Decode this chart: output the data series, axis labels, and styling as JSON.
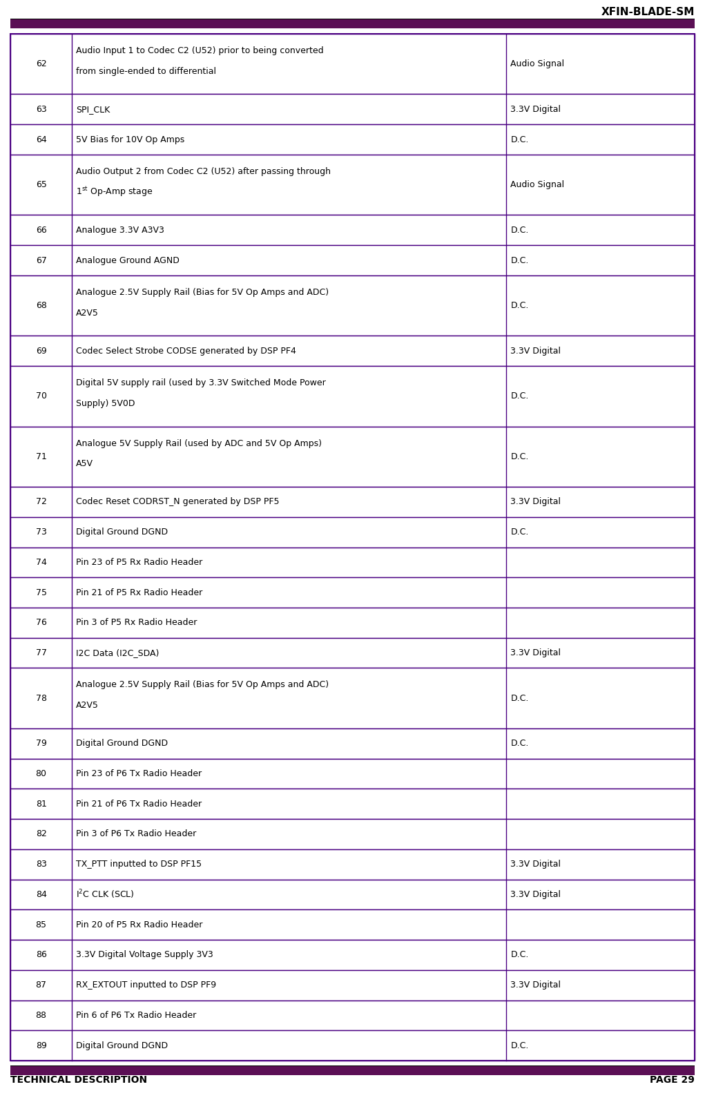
{
  "title": "XFIN-BLADE-SM",
  "footer_left": "TECHNICAL DESCRIPTION",
  "footer_right": "PAGE 29",
  "header_bar_color": "#5B0F55",
  "footer_bar_color": "#5B0F55",
  "table_border_color": "#4B0082",
  "rows": [
    {
      "pin": "62",
      "description": "Audio Input 1 to Codec C2 (U52) prior to being converted\nfrom single-ended to differential",
      "signal": "Audio Signal",
      "tall": true
    },
    {
      "pin": "63",
      "description": "SPI_CLK",
      "signal": "3.3V Digital",
      "tall": false
    },
    {
      "pin": "64",
      "description": "5V Bias for 10V Op Amps",
      "signal": "D.C.",
      "tall": false
    },
    {
      "pin": "65",
      "description": "Audio Output 2 from Codec C2 (U52) after passing through\n1st Op-Amp stage",
      "signal": "Audio Signal",
      "tall": true,
      "superscript": "st",
      "super_after": "1",
      "super_line": 1
    },
    {
      "pin": "66",
      "description": "Analogue 3.3V A3V3",
      "signal": "D.C.",
      "tall": false
    },
    {
      "pin": "67",
      "description": "Analogue Ground AGND",
      "signal": "D.C.",
      "tall": false
    },
    {
      "pin": "68",
      "description": "Analogue 2.5V Supply Rail (Bias for 5V Op Amps and ADC)\nA2V5",
      "signal": "D.C.",
      "tall": true
    },
    {
      "pin": "69",
      "description": "Codec Select Strobe CODSE generated by DSP PF4",
      "signal": "3.3V Digital",
      "tall": false
    },
    {
      "pin": "70",
      "description": "Digital 5V supply rail (used by 3.3V Switched Mode Power\nSupply) 5V0D",
      "signal": "D.C.",
      "tall": true
    },
    {
      "pin": "71",
      "description": "Analogue 5V Supply Rail (used by ADC and 5V Op Amps)\nA5V",
      "signal": "D.C.",
      "tall": true
    },
    {
      "pin": "72",
      "description": "Codec Reset CODRST_N generated by DSP PF5",
      "signal": "3.3V Digital",
      "tall": false
    },
    {
      "pin": "73",
      "description": "Digital Ground DGND",
      "signal": "D.C.",
      "tall": false
    },
    {
      "pin": "74",
      "description": "Pin 23 of P5 Rx Radio Header",
      "signal": "",
      "tall": false
    },
    {
      "pin": "75",
      "description": "Pin 21 of P5 Rx Radio Header",
      "signal": "",
      "tall": false
    },
    {
      "pin": "76",
      "description": "Pin 3 of P5 Rx Radio Header",
      "signal": "",
      "tall": false
    },
    {
      "pin": "77",
      "description": "I2C Data (I2C_SDA)",
      "signal": "3.3V Digital",
      "tall": false
    },
    {
      "pin": "78",
      "description": "Analogue 2.5V Supply Rail (Bias for 5V Op Amps and ADC)\nA2V5",
      "signal": "D.C.",
      "tall": true
    },
    {
      "pin": "79",
      "description": "Digital Ground DGND",
      "signal": "D.C.",
      "tall": false
    },
    {
      "pin": "80",
      "description": "Pin 23 of P6 Tx Radio Header",
      "signal": "",
      "tall": false
    },
    {
      "pin": "81",
      "description": "Pin 21 of P6 Tx Radio Header",
      "signal": "",
      "tall": false
    },
    {
      "pin": "82",
      "description": "Pin 3 of P6 Tx Radio Header",
      "signal": "",
      "tall": false
    },
    {
      "pin": "83",
      "description": "TX_PTT inputted to DSP PF15",
      "signal": "3.3V Digital",
      "tall": false
    },
    {
      "pin": "84",
      "description": "I2C CLK (SCL)",
      "signal": "3.3V Digital",
      "tall": false,
      "i2c": true
    },
    {
      "pin": "85",
      "description": "Pin 20 of P5 Rx Radio Header",
      "signal": "",
      "tall": false
    },
    {
      "pin": "86",
      "description": "3.3V Digital Voltage Supply 3V3",
      "signal": "D.C.",
      "tall": false
    },
    {
      "pin": "87",
      "description": "RX_EXTOUT inputted to DSP PF9",
      "signal": "3.3V Digital",
      "tall": false
    },
    {
      "pin": "88",
      "description": "Pin 6 of P6 Tx Radio Header",
      "signal": "",
      "tall": false
    },
    {
      "pin": "89",
      "description": "Digital Ground DGND",
      "signal": "D.C.",
      "tall": false
    }
  ],
  "bg_color": "#FFFFFF",
  "text_color": "#000000",
  "font_size": 9.0,
  "title_fontsize": 11,
  "footer_fontsize": 10
}
